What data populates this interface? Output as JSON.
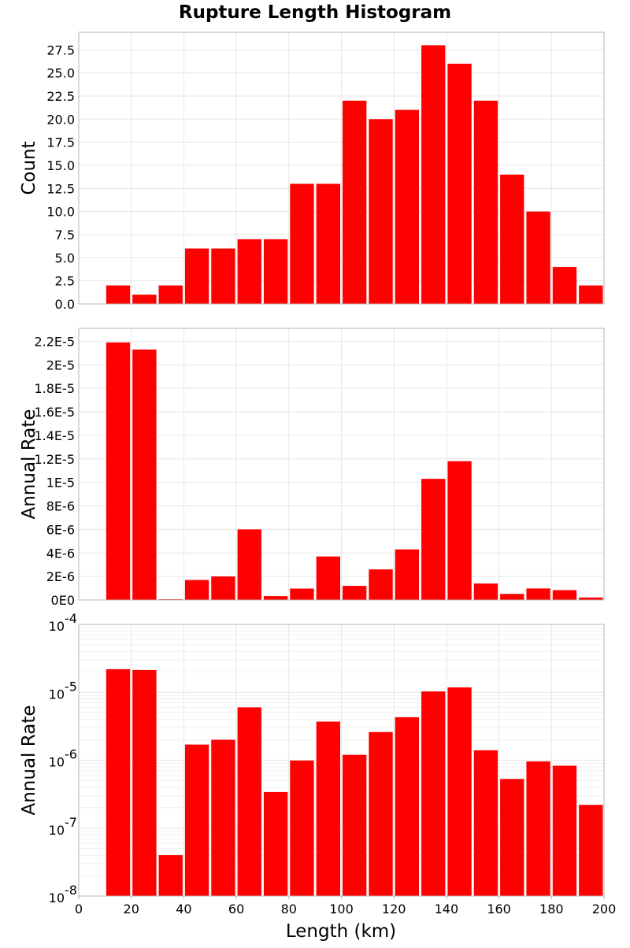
{
  "chart_data": {
    "title": "Rupture Length Histogram",
    "type": "bar",
    "bar_color": "#ff0000",
    "x": {
      "label": "Length (km)",
      "range": [
        0,
        200
      ],
      "ticks": [
        0,
        20,
        40,
        60,
        80,
        100,
        120,
        140,
        160,
        180,
        200
      ],
      "tick_labels": [
        "0",
        "20",
        "40",
        "60",
        "80",
        "100",
        "120",
        "140",
        "160",
        "180",
        "200"
      ]
    },
    "bin_width": 10,
    "bin_centers": [
      15,
      25,
      35,
      45,
      55,
      65,
      75,
      85,
      95,
      105,
      115,
      125,
      135,
      145,
      155,
      165,
      175,
      185,
      195
    ],
    "panels": [
      {
        "type": "bar",
        "ylabel": "Count",
        "yscale": "linear",
        "ylim": [
          0,
          29.4
        ],
        "yticks": [
          0,
          2.5,
          5,
          7.5,
          10,
          12.5,
          15,
          17.5,
          20,
          22.5,
          25,
          27.5
        ],
        "ytick_labels": [
          "0.0",
          "2.5",
          "5.0",
          "7.5",
          "10.0",
          "12.5",
          "15.0",
          "17.5",
          "20.0",
          "22.5",
          "25.0",
          "27.5"
        ],
        "values": [
          2,
          1,
          2,
          6,
          6,
          7,
          7,
          13,
          13,
          22,
          20,
          21,
          28,
          26,
          22,
          14,
          10,
          4,
          2
        ]
      },
      {
        "type": "bar",
        "ylabel": "Annual Rate",
        "yscale": "linear",
        "ylim": [
          0,
          2.31e-05
        ],
        "yticks": [
          0,
          2e-06,
          4e-06,
          6e-06,
          8e-06,
          1e-05,
          1.2e-05,
          1.4e-05,
          1.6e-05,
          1.8e-05,
          2e-05,
          2.2e-05
        ],
        "ytick_labels": [
          "0E0",
          "2E-6",
          "4E-6",
          "6E-6",
          "8E-6",
          "1E-5",
          "1.2E-5",
          "1.4E-5",
          "1.6E-5",
          "1.8E-5",
          "2E-5",
          "2.2E-5"
        ],
        "values": [
          2.19e-05,
          2.13e-05,
          6e-08,
          1.7e-06,
          2e-06,
          6e-06,
          3.3e-07,
          9.7e-07,
          3.7e-06,
          1.2e-06,
          2.6e-06,
          4.3e-06,
          1.03e-05,
          1.18e-05,
          1.4e-06,
          5.2e-07,
          9.8e-07,
          8.4e-07,
          2.1e-07
        ]
      },
      {
        "type": "bar",
        "ylabel": "Annual Rate",
        "yscale": "log",
        "ylim": [
          1e-08,
          0.0001
        ],
        "yticks": [
          1e-08,
          1e-07,
          1e-06,
          1e-05,
          0.0001
        ],
        "ytick_labels": [
          {
            "base": "10",
            "exp": "-8"
          },
          {
            "base": "10",
            "exp": "-7"
          },
          {
            "base": "10",
            "exp": "-6"
          },
          {
            "base": "10",
            "exp": "-5"
          },
          {
            "base": "10",
            "exp": "-4"
          }
        ],
        "values": [
          2.19e-05,
          2.13e-05,
          4e-08,
          1.7e-06,
          2e-06,
          6e-06,
          3.4e-07,
          9.9e-07,
          3.7e-06,
          1.2e-06,
          2.6e-06,
          4.3e-06,
          1.03e-05,
          1.18e-05,
          1.4e-06,
          5.3e-07,
          9.6e-07,
          8.3e-07,
          2.2e-07
        ]
      }
    ]
  }
}
